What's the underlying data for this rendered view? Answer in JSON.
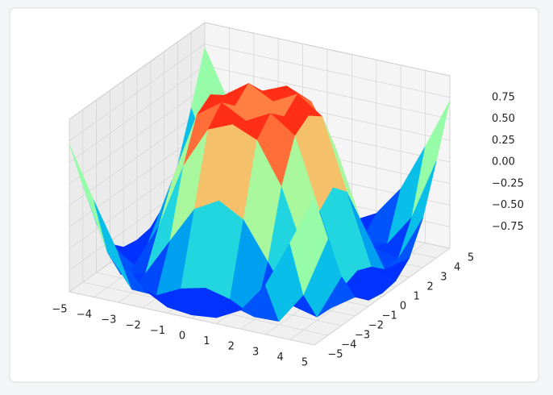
{
  "chart_data": {
    "type": "surface",
    "colormap": "rainbow",
    "x": [
      -5,
      -4,
      -3,
      -2,
      -1,
      0,
      1,
      2,
      3,
      4,
      5
    ],
    "y": [
      -5,
      -4,
      -3,
      -2,
      -1,
      0,
      1,
      2,
      3,
      4,
      5
    ],
    "z": [
      [
        0.71,
        0.12,
        -0.43,
        -0.78,
        -0.93,
        -0.96,
        -0.93,
        -0.78,
        -0.43,
        0.12,
        0.71
      ],
      [
        0.12,
        -0.59,
        -0.96,
        -0.97,
        -0.83,
        -0.76,
        -0.83,
        -0.97,
        -0.96,
        -0.59,
        0.12
      ],
      [
        -0.43,
        -0.96,
        -0.89,
        -0.45,
        -0.02,
        0.14,
        -0.02,
        -0.45,
        -0.89,
        -0.96,
        -0.43
      ],
      [
        -0.78,
        -0.97,
        -0.45,
        0.31,
        0.79,
        0.91,
        0.79,
        0.31,
        -0.45,
        -0.97,
        -0.78
      ],
      [
        -0.93,
        -0.83,
        -0.02,
        0.79,
        0.99,
        0.84,
        0.99,
        0.79,
        -0.02,
        -0.83,
        -0.93
      ],
      [
        -0.96,
        -0.76,
        0.14,
        0.91,
        0.84,
        0,
        0.84,
        0.91,
        0.14,
        -0.76,
        -0.96
      ],
      [
        -0.93,
        -0.83,
        -0.02,
        0.79,
        0.99,
        0.84,
        0.99,
        0.79,
        -0.02,
        -0.83,
        -0.93
      ],
      [
        -0.78,
        -0.97,
        -0.45,
        0.31,
        0.79,
        0.91,
        0.79,
        0.31,
        -0.45,
        -0.97,
        -0.78
      ],
      [
        -0.43,
        -0.96,
        -0.89,
        -0.45,
        -0.02,
        0.14,
        -0.02,
        -0.45,
        -0.89,
        -0.96,
        -0.43
      ],
      [
        0.12,
        -0.59,
        -0.96,
        -0.97,
        -0.83,
        -0.76,
        -0.83,
        -0.97,
        -0.96,
        -0.59,
        0.12
      ],
      [
        0.71,
        0.12,
        -0.43,
        -0.78,
        -0.93,
        -0.96,
        -0.93,
        -0.78,
        -0.43,
        0.12,
        0.71
      ]
    ],
    "xlim": [
      -5,
      5
    ],
    "ylim": [
      -5,
      5
    ],
    "zlim": [
      -1,
      1
    ],
    "xticks": [
      {
        "value": -5,
        "label": "−5"
      },
      {
        "value": -4,
        "label": "−4"
      },
      {
        "value": -3,
        "label": "−3"
      },
      {
        "value": -2,
        "label": "−2"
      },
      {
        "value": -1,
        "label": "−1"
      },
      0,
      1,
      2,
      3,
      4,
      5
    ],
    "yticks": [
      {
        "value": -5,
        "label": "−5"
      },
      {
        "value": -4,
        "label": "−4"
      },
      {
        "value": -3,
        "label": "−3"
      },
      {
        "value": -2,
        "label": "−2"
      },
      {
        "value": -1,
        "label": "−1"
      },
      0,
      1,
      2,
      3,
      4,
      5
    ],
    "zticks": [
      {
        "value": -0.75,
        "label": "−0.75"
      },
      {
        "value": -0.5,
        "label": "−0.50"
      },
      {
        "value": -0.25,
        "label": "−0.25"
      },
      {
        "value": 0,
        "label": "0.00"
      },
      {
        "value": 0.25,
        "label": "0.25"
      },
      {
        "value": 0.5,
        "label": "0.50"
      },
      {
        "value": 0.75,
        "label": "0.75"
      }
    ],
    "grid": true
  }
}
